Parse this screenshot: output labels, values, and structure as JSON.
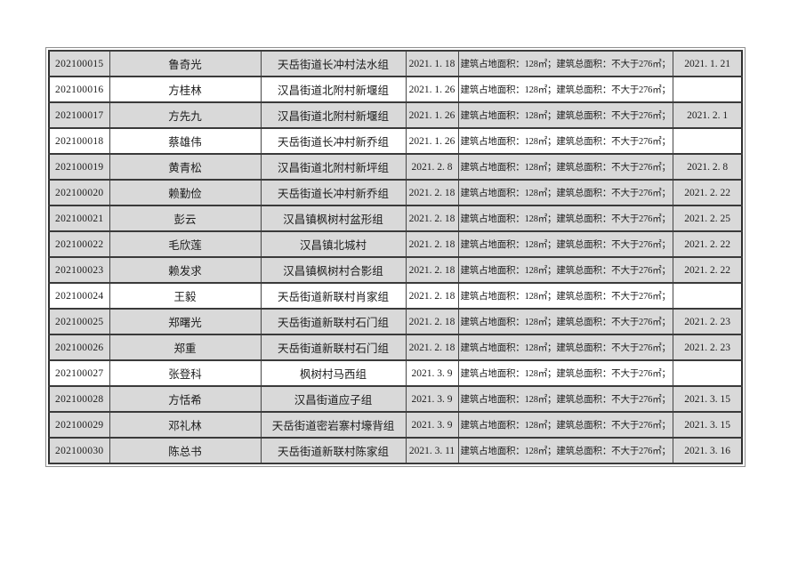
{
  "page": {
    "background_color": "#ffffff"
  },
  "table": {
    "description": "approval-records-table",
    "colors": {
      "shaded_row_background": "#d9d9d9",
      "plain_row_background": "#ffffff",
      "border_color": "#3a3a3a"
    },
    "rows": [
      {
        "serial": "202100015",
        "name": "鲁奇光",
        "village": "天岳街道长冲村法水组",
        "apply_date": "2021. 1. 18",
        "building_area": "建筑占地面积：128㎡；建筑总面积：不大于276㎡；",
        "approve_date": "2021. 1. 21",
        "highlighted": true
      },
      {
        "serial": "202100016",
        "name": "方桂林",
        "village": "汉昌街道北附村新堰组",
        "apply_date": "2021. 1. 26",
        "building_area": "建筑占地面积：128㎡；建筑总面积：不大于276㎡；",
        "approve_date": "",
        "highlighted": false
      },
      {
        "serial": "202100017",
        "name": "方先九",
        "village": "汉昌街道北附村新堰组",
        "apply_date": "2021. 1. 26",
        "building_area": "建筑占地面积：128㎡；建筑总面积：不大于276㎡；",
        "approve_date": "2021. 2. 1",
        "highlighted": true
      },
      {
        "serial": "202100018",
        "name": "蔡雄伟",
        "village": "天岳街道长冲村新乔组",
        "apply_date": "2021. 1. 26",
        "building_area": "建筑占地面积：128㎡；建筑总面积：不大于276㎡；",
        "approve_date": "",
        "highlighted": false
      },
      {
        "serial": "202100019",
        "name": "黄青松",
        "village": "汉昌街道北附村新坪组",
        "apply_date": "2021. 2. 8",
        "building_area": "建筑占地面积：128㎡；建筑总面积：不大于276㎡；",
        "approve_date": "2021. 2. 8",
        "highlighted": true
      },
      {
        "serial": "202100020",
        "name": "赖勤俭",
        "village": "天岳街道长冲村新乔组",
        "apply_date": "2021. 2. 18",
        "building_area": "建筑占地面积：128㎡；建筑总面积：不大于276㎡；",
        "approve_date": "2021. 2. 22",
        "highlighted": true
      },
      {
        "serial": "202100021",
        "name": "彭云",
        "village": "汉昌镇枫树村盆形组",
        "apply_date": "2021. 2. 18",
        "building_area": "建筑占地面积：128㎡；建筑总面积：不大于276㎡；",
        "approve_date": "2021. 2. 25",
        "highlighted": true
      },
      {
        "serial": "202100022",
        "name": "毛欣莲",
        "village": "汉昌镇北城村",
        "apply_date": "2021. 2. 18",
        "building_area": "建筑占地面积：128㎡；建筑总面积：不大于276㎡；",
        "approve_date": "2021. 2. 22",
        "highlighted": true
      },
      {
        "serial": "202100023",
        "name": "赖发求",
        "village": "汉昌镇枫树村合影组",
        "apply_date": "2021. 2. 18",
        "building_area": "建筑占地面积：128㎡；建筑总面积：不大于276㎡；",
        "approve_date": "2021. 2. 22",
        "highlighted": true
      },
      {
        "serial": "202100024",
        "name": "王毅",
        "village": "天岳街道新联村肖家组",
        "apply_date": "2021. 2. 18",
        "building_area": "建筑占地面积：128㎡；建筑总面积：不大于276㎡；",
        "approve_date": "",
        "highlighted": false
      },
      {
        "serial": "202100025",
        "name": "郑曙光",
        "village": "天岳街道新联村石门组",
        "apply_date": "2021. 2. 18",
        "building_area": "建筑占地面积：128㎡；建筑总面积：不大于276㎡；",
        "approve_date": "2021. 2. 23",
        "highlighted": true
      },
      {
        "serial": "202100026",
        "name": "郑重",
        "village": "天岳街道新联村石门组",
        "apply_date": "2021. 2. 18",
        "building_area": "建筑占地面积：128㎡；建筑总面积：不大于276㎡；",
        "approve_date": "2021. 2. 23",
        "highlighted": true
      },
      {
        "serial": "202100027",
        "name": "张登科",
        "village": "枫树村马西组",
        "apply_date": "2021. 3. 9",
        "building_area": "建筑占地面积：128㎡；建筑总面积：不大于276㎡；",
        "approve_date": "",
        "highlighted": false
      },
      {
        "serial": "202100028",
        "name": "方恬希",
        "village": "汉昌街道应子组",
        "apply_date": "2021. 3. 9",
        "building_area": "建筑占地面积：128㎡；建筑总面积：不大于276㎡；",
        "approve_date": "2021. 3. 15",
        "highlighted": true
      },
      {
        "serial": "202100029",
        "name": "邓礼林",
        "village": "天岳街道密岩寨村壕背组",
        "apply_date": "2021. 3. 9",
        "building_area": "建筑占地面积：128㎡；建筑总面积：不大于276㎡；",
        "approve_date": "2021. 3. 15",
        "highlighted": true
      },
      {
        "serial": "202100030",
        "name": "陈总书",
        "village": "天岳街道新联村陈家组",
        "apply_date": "2021. 3. 11",
        "building_area": "建筑占地面积：128㎡；建筑总面积：不大于276㎡；",
        "approve_date": "2021. 3. 16",
        "highlighted": true
      }
    ]
  }
}
